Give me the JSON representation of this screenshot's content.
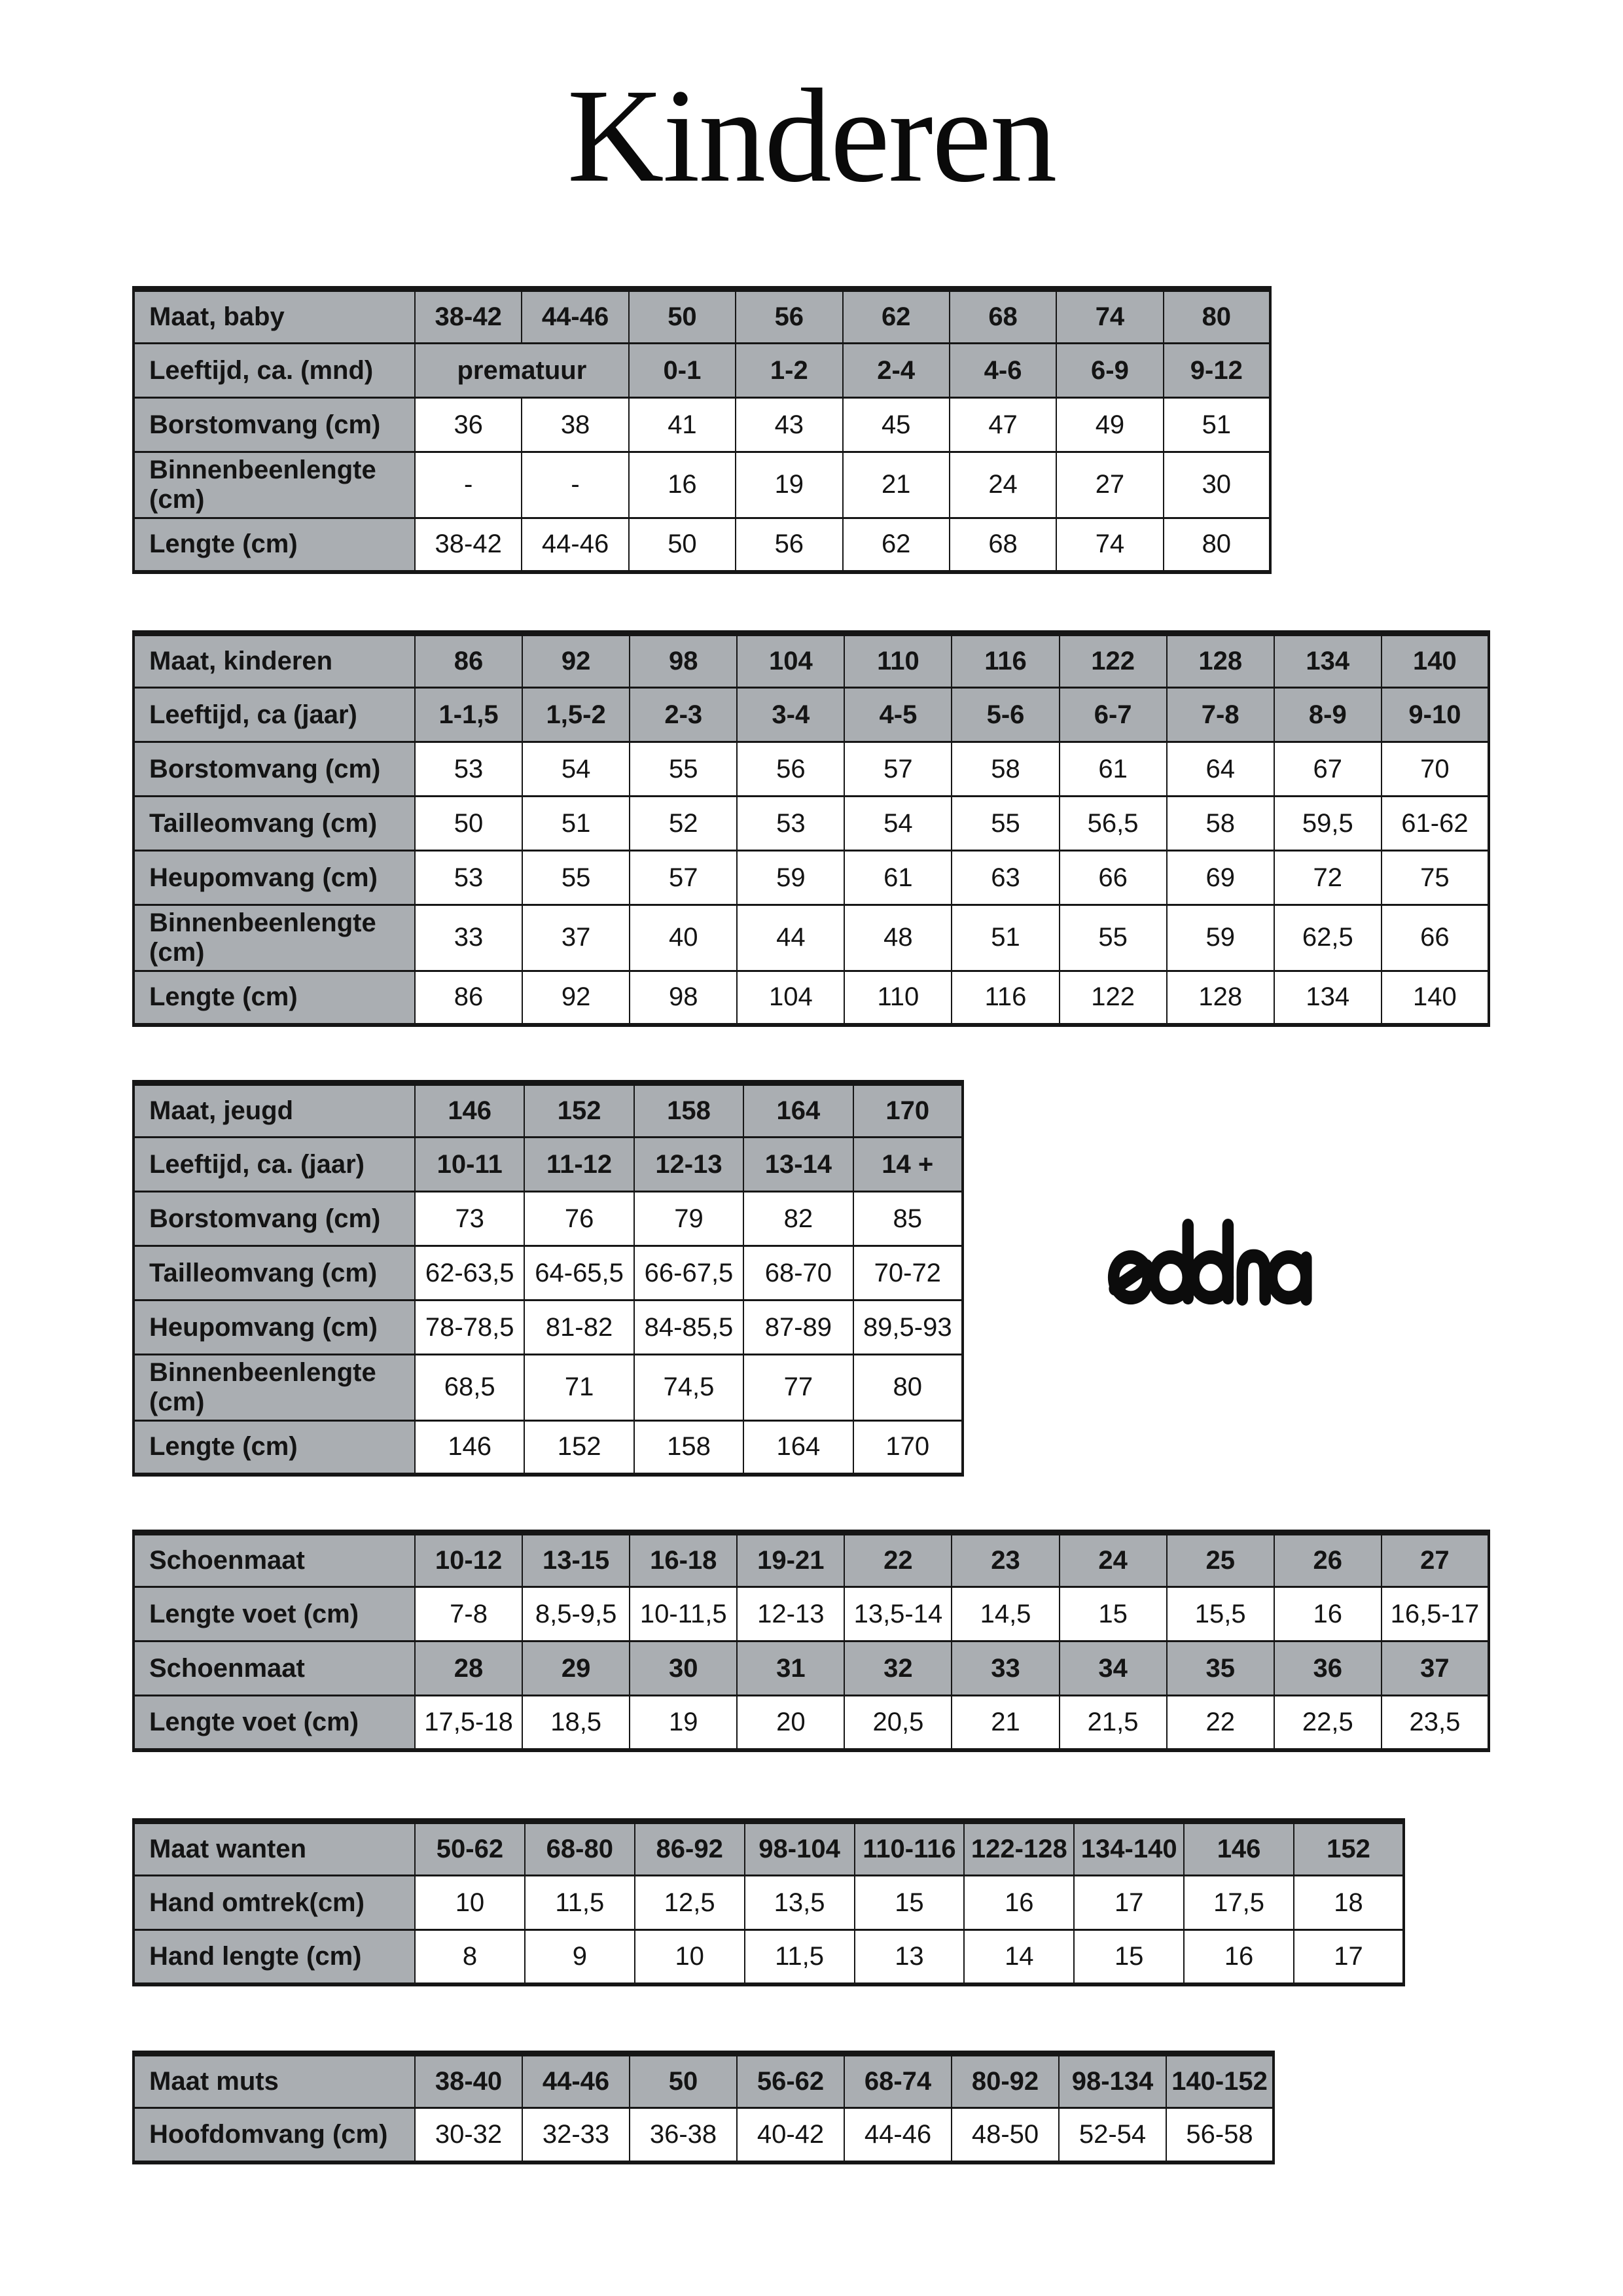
{
  "title": "Kinderen",
  "logo": {
    "text": "eddna"
  },
  "colors": {
    "header_gray": "#aaaeb2",
    "border": "#161616",
    "text": "#141414",
    "background": "#ffffff"
  },
  "tables": [
    {
      "name": "baby",
      "label_width": 430,
      "rows": [
        {
          "type": "header",
          "label": "Maat, baby",
          "cells": [
            "38-42",
            "44-46",
            "50",
            "56",
            "62",
            "68",
            "74",
            "80"
          ]
        },
        {
          "type": "header",
          "label": "Leeftijd, ca. (mnd)",
          "cells": [
            {
              "text": "prematuur",
              "span": 2
            },
            "0-1",
            "1-2",
            "2-4",
            "4-6",
            "6-9",
            "9-12"
          ]
        },
        {
          "type": "data",
          "label": "Borstomvang (cm)",
          "cells": [
            "36",
            "38",
            "41",
            "43",
            "45",
            "47",
            "49",
            "51"
          ]
        },
        {
          "type": "data",
          "label": "Binnenbeenlengte (cm)",
          "cells": [
            "-",
            "-",
            "16",
            "19",
            "21",
            "24",
            "27",
            "30"
          ]
        },
        {
          "type": "data",
          "label": "Lengte (cm)",
          "cells": [
            "38-42",
            "44-46",
            "50",
            "56",
            "62",
            "68",
            "74",
            "80"
          ]
        }
      ]
    },
    {
      "name": "kinderen",
      "label_width": 430,
      "rows": [
        {
          "type": "header",
          "label": "Maat, kinderen",
          "cells": [
            "86",
            "92",
            "98",
            "104",
            "110",
            "116",
            "122",
            "128",
            "134",
            "140"
          ]
        },
        {
          "type": "header",
          "label": "Leeftijd, ca (jaar)",
          "cells": [
            "1-1,5",
            "1,5-2",
            "2-3",
            "3-4",
            "4-5",
            "5-6",
            "6-7",
            "7-8",
            "8-9",
            "9-10"
          ]
        },
        {
          "type": "data",
          "label": "Borstomvang (cm)",
          "cells": [
            "53",
            "54",
            "55",
            "56",
            "57",
            "58",
            "61",
            "64",
            "67",
            "70"
          ]
        },
        {
          "type": "data",
          "label": "Tailleomvang (cm)",
          "cells": [
            "50",
            "51",
            "52",
            "53",
            "54",
            "55",
            "56,5",
            "58",
            "59,5",
            "61-62"
          ]
        },
        {
          "type": "data",
          "label": "Heupomvang (cm)",
          "cells": [
            "53",
            "55",
            "57",
            "59",
            "61",
            "63",
            "66",
            "69",
            "72",
            "75"
          ]
        },
        {
          "type": "data",
          "label": "Binnenbeenlengte (cm)",
          "cells": [
            "33",
            "37",
            "40",
            "44",
            "48",
            "51",
            "55",
            "59",
            "62,5",
            "66"
          ]
        },
        {
          "type": "data",
          "label": "Lengte (cm)",
          "cells": [
            "86",
            "92",
            "98",
            "104",
            "110",
            "116",
            "122",
            "128",
            "134",
            "140"
          ]
        }
      ]
    },
    {
      "name": "jeugd",
      "label_width": 430,
      "rows": [
        {
          "type": "header",
          "label": "Maat, jeugd",
          "cells": [
            "146",
            "152",
            "158",
            "164",
            "170"
          ]
        },
        {
          "type": "header",
          "label": "Leeftijd, ca. (jaar)",
          "cells": [
            "10-11",
            "11-12",
            "12-13",
            "13-14",
            "14 +"
          ]
        },
        {
          "type": "data",
          "label": "Borstomvang (cm)",
          "cells": [
            "73",
            "76",
            "79",
            "82",
            "85"
          ]
        },
        {
          "type": "data",
          "label": "Tailleomvang (cm)",
          "cells": [
            "62-63,5",
            "64-65,5",
            "66-67,5",
            "68-70",
            "70-72"
          ]
        },
        {
          "type": "data",
          "label": "Heupomvang (cm)",
          "cells": [
            "78-78,5",
            "81-82",
            "84-85,5",
            "87-89",
            "89,5-93"
          ]
        },
        {
          "type": "data",
          "label": "Binnenbeenlengte (cm)",
          "cells": [
            "68,5",
            "71",
            "74,5",
            "77",
            "80"
          ]
        },
        {
          "type": "data",
          "label": "Lengte (cm)",
          "cells": [
            "146",
            "152",
            "158",
            "164",
            "170"
          ]
        }
      ]
    },
    {
      "name": "schoenen",
      "label_width": 430,
      "rows": [
        {
          "type": "header",
          "label": "Schoenmaat",
          "cells": [
            "10-12",
            "13-15",
            "16-18",
            "19-21",
            "22",
            "23",
            "24",
            "25",
            "26",
            "27"
          ]
        },
        {
          "type": "data",
          "label": "Lengte voet (cm)",
          "cells": [
            "7-8",
            "8,5-9,5",
            "10-11,5",
            "12-13",
            "13,5-14",
            "14,5",
            "15",
            "15,5",
            "16",
            "16,5-17"
          ]
        },
        {
          "type": "header",
          "label": "Schoenmaat",
          "cells": [
            "28",
            "29",
            "30",
            "31",
            "32",
            "33",
            "34",
            "35",
            "36",
            "37"
          ]
        },
        {
          "type": "data",
          "label": "Lengte voet (cm)",
          "cells": [
            "17,5-18",
            "18,5",
            "19",
            "20",
            "20,5",
            "21",
            "21,5",
            "22",
            "22,5",
            "23,5"
          ]
        }
      ]
    },
    {
      "name": "wanten",
      "label_width": 430,
      "rows": [
        {
          "type": "header",
          "label": "Maat wanten",
          "cells": [
            "50-62",
            "68-80",
            "86-92",
            "98-104",
            "110-116",
            "122-128",
            "134-140",
            "146",
            "152"
          ]
        },
        {
          "type": "data",
          "label": "Hand omtrek(cm)",
          "cells": [
            "10",
            "11,5",
            "12,5",
            "13,5",
            "15",
            "16",
            "17",
            "17,5",
            "18"
          ]
        },
        {
          "type": "data",
          "label": "Hand lengte (cm)",
          "cells": [
            "8",
            "9",
            "10",
            "11,5",
            "13",
            "14",
            "15",
            "16",
            "17"
          ]
        }
      ]
    },
    {
      "name": "muts",
      "label_width": 430,
      "rows": [
        {
          "type": "header",
          "label": "Maat muts",
          "cells": [
            "38-40",
            "44-46",
            "50",
            "56-62",
            "68-74",
            "80-92",
            "98-134",
            "140-152"
          ]
        },
        {
          "type": "data",
          "label": "Hoofdomvang (cm)",
          "cells": [
            "30-32",
            "32-33",
            "36-38",
            "40-42",
            "44-46",
            "48-50",
            "52-54",
            "56-58"
          ]
        }
      ]
    }
  ]
}
